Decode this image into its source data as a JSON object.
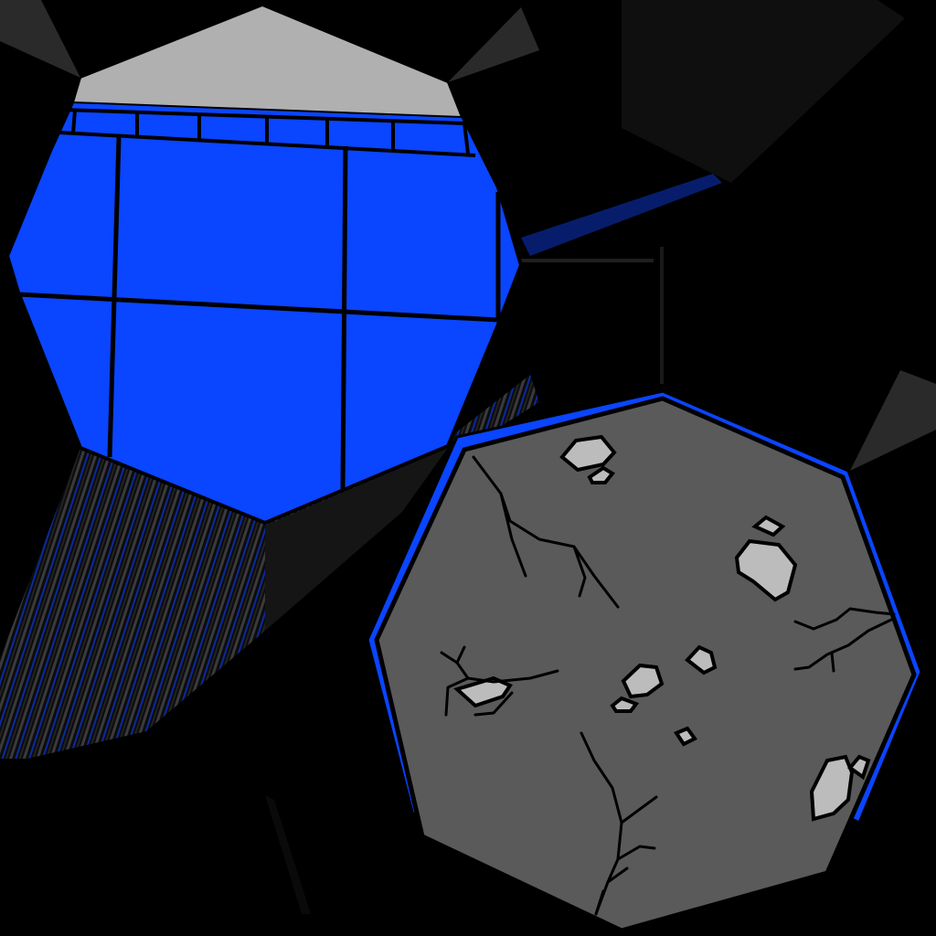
{
  "scene": {
    "background": "#000000"
  },
  "textures": {
    "tile_panel": {
      "kind": "blue-tiled-octagon",
      "fill": "#0a45ff",
      "grout": "#000000",
      "cap": "#b0b0b0"
    },
    "rock_panel": {
      "kind": "grey-stone-octagon",
      "fill": "#5a5a5a",
      "rim": "#0a45ff",
      "pebble": "#bcbcbc",
      "crack": "#000000"
    },
    "smear": {
      "dark": "#1a1a1a",
      "blue": "#0a2a9a"
    },
    "wedge": "#2a2a2a",
    "shadow_block": "#111111"
  }
}
